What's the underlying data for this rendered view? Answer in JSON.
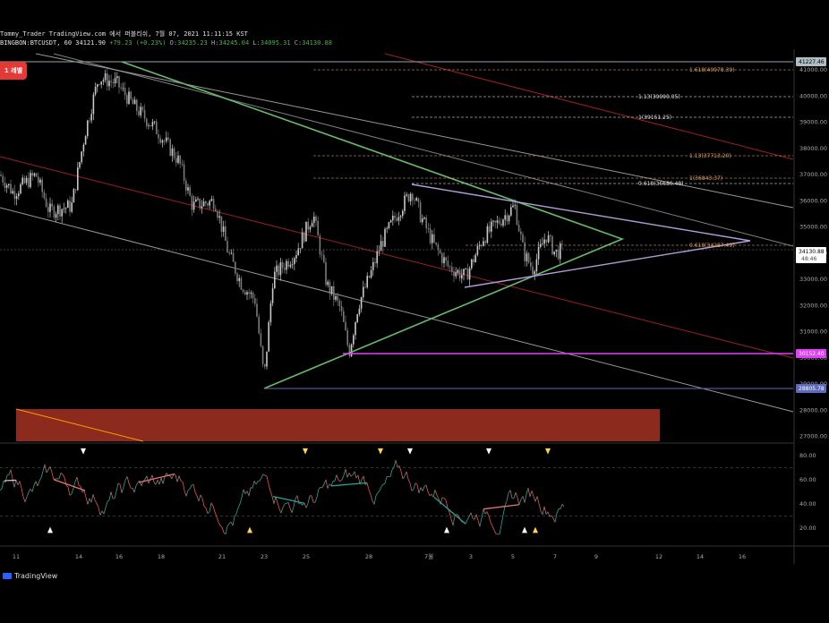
{
  "header": {
    "line1": "Tommy_Trader TradingView.com 에서 퍼블리쉬, 7월 07, 2021 11:11:15 KST",
    "symbol": "BINGBON:BTCUSDT, 60",
    "price": "34121.90",
    "change": "+79.23 (+0.23%)",
    "open": "34235.23",
    "high": "34245.04",
    "low": "34095.31",
    "close": "34130.88",
    "o_label": "O:",
    "h_label": "H:",
    "l_label": "L:",
    "c_label": "C:"
  },
  "badge": {
    "label": "1 레벨"
  },
  "price_axis": {
    "ticks": [
      "41000.00",
      "40000.00",
      "39000.00",
      "38000.00",
      "37000.00",
      "36000.00",
      "35000.00",
      "34000.00",
      "33000.00",
      "32000.00",
      "31000.00",
      "30000.00",
      "29000.00",
      "28000.00",
      "27000.00"
    ],
    "tags": [
      {
        "label": "41227.46",
        "color": "#b0bec5",
        "text_color": "#000"
      },
      {
        "label": "34130.88",
        "sub": "48:46",
        "color": "#ffffff",
        "text_color": "#000"
      },
      {
        "label": "30152.40",
        "color": "#e040fb",
        "text_color": "#fff"
      },
      {
        "label": "28805.78",
        "color": "#5c6bc0",
        "text_color": "#fff"
      }
    ]
  },
  "fib_labels": [
    {
      "label": "1.618(40978.39)",
      "color": "#e0a060"
    },
    {
      "label": "1.13(39990.05)",
      "color": "#e0e0e0"
    },
    {
      "label": "1(39151.25)",
      "color": "#e0e0e0"
    },
    {
      "label": "1.13(37713.20)",
      "color": "#e0a060"
    },
    {
      "label": "1(36843.37)",
      "color": "#e0a060"
    },
    {
      "label": "0.618(36686.48)",
      "color": "#e0e0e0"
    },
    {
      "label": "0.618(34287.49)",
      "color": "#e0a060"
    }
  ],
  "osc_axis": {
    "ticks": [
      "80.00",
      "60.00",
      "40.00",
      "20.00"
    ]
  },
  "time_axis": {
    "ticks": [
      "11",
      "14",
      "16",
      "18",
      "21",
      "23",
      "25",
      "28",
      "7월",
      "3",
      "5",
      "7",
      "9",
      "12",
      "14",
      "16"
    ]
  },
  "branding": {
    "name": "TradingView"
  },
  "colors": {
    "up": "#c8c8c8",
    "down": "#7a7a7a",
    "triangle": "#66bb6a",
    "magenta": "#e040fb",
    "wedge": "#b39ddb",
    "channel_red": "#c62828",
    "channel_white": "#bdbdbd",
    "zone": "#8d2a1e"
  }
}
